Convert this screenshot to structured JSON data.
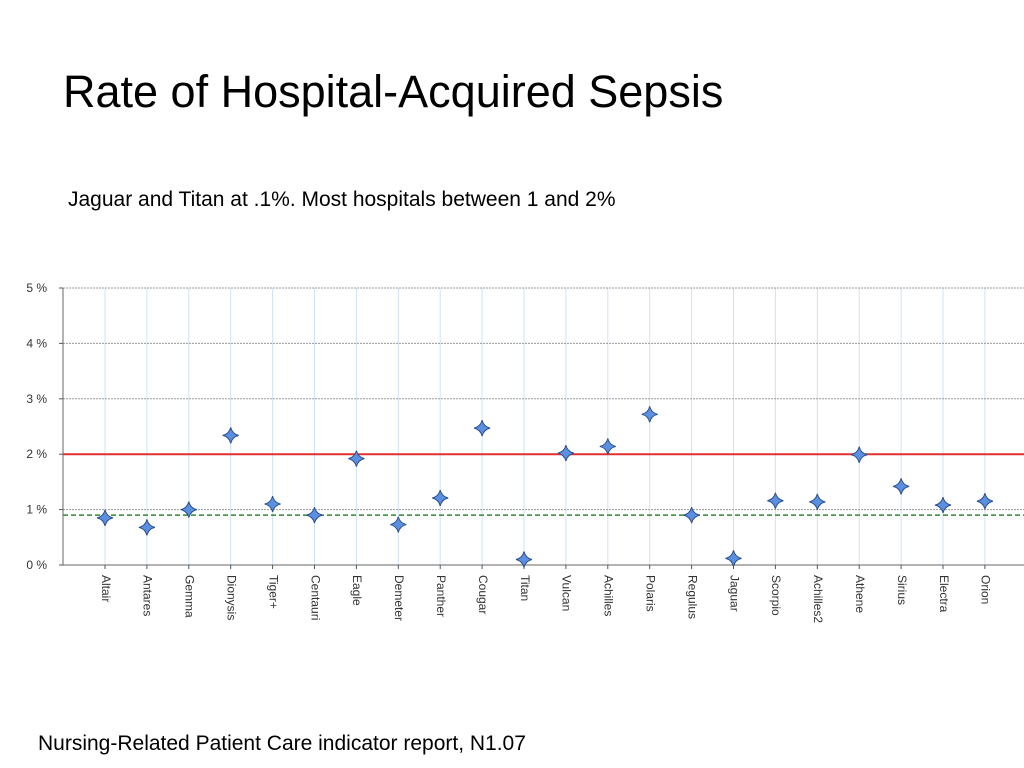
{
  "slide": {
    "title": "Rate of Hospital-Acquired Sepsis",
    "subtitle": "Jaguar and Titan at .1%. Most hospitals between 1 and 2%",
    "footer": "Nursing-Related Patient Care indicator report, N1.07"
  },
  "chart_data": {
    "type": "scatter",
    "title": "",
    "xlabel": "",
    "ylabel": "",
    "categories": [
      "Altair",
      "Antares",
      "Gemma",
      "Dionysis",
      "Tiger+",
      "Centauri",
      "Eagle",
      "Demeter",
      "Panther",
      "Cougar",
      "Titan",
      "Vulcan",
      "Achilles",
      "Polaris",
      "Regulus",
      "Jaguar",
      "Scorpio",
      "Achilles2",
      "Athene",
      "Sirius",
      "Electra",
      "Orion"
    ],
    "series": [
      {
        "values": [
          0.85,
          0.68,
          1.0,
          2.34,
          1.1,
          0.9,
          1.92,
          0.73,
          1.21,
          2.47,
          0.1,
          2.02,
          2.14,
          2.72,
          0.9,
          0.12,
          1.16,
          1.14,
          1.99,
          1.42,
          1.08,
          1.15
        ]
      }
    ],
    "reference_lines": [
      {
        "value": 2.0,
        "color": "#e03030",
        "style": "solid"
      },
      {
        "value": 0.9,
        "color": "#2a8a2a",
        "style": "dashed"
      }
    ],
    "ylim": [
      0,
      5
    ],
    "yticks": [
      0,
      1,
      2,
      3,
      4,
      5
    ],
    "ytick_labels": [
      "0 %",
      "1 %",
      "2 %",
      "3 %",
      "4 %",
      "5 %"
    ],
    "grid": true,
    "marker": "diamond",
    "marker_color": "#5b8fe0"
  }
}
